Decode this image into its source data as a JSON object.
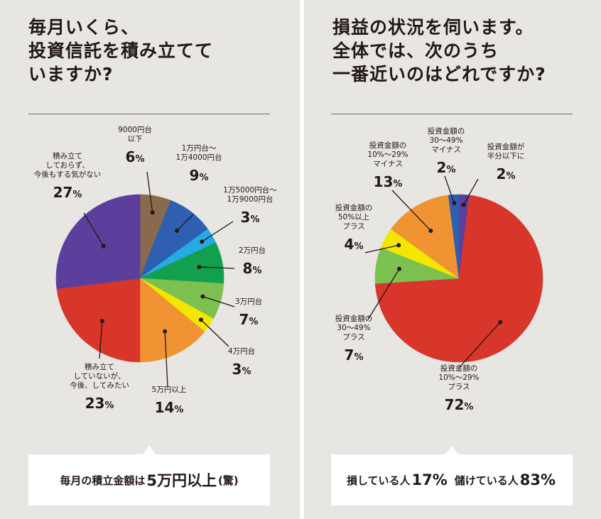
{
  "left": {
    "question": [
      "毎月いくら、",
      "投資信託を積み立てて",
      "いますか?"
    ],
    "callout": {
      "prefix": "毎月の積立金額は",
      "emphasis": "5万円以上",
      "suffix": "(驚)"
    }
  },
  "right": {
    "question": [
      "損益の状況を伺います。",
      "全体では、次のうち",
      "一番近いのはどれですか?"
    ],
    "callout": {
      "loss_label": "損している人",
      "loss_value": "17%",
      "gain_label": "儲けている人",
      "gain_value": "83%"
    }
  },
  "chart_data": [
    {
      "type": "pie",
      "title": "毎月いくら、投資信託を積み立てていますか?",
      "unit": "%",
      "slices": [
        {
          "label": [
            "9000円台",
            "以下"
          ],
          "value": 6,
          "color": "#8a6a4c"
        },
        {
          "label": [
            "1万円台〜",
            "1万4000円台"
          ],
          "value": 9,
          "color": "#2e5fb0"
        },
        {
          "label": [
            "1万5000円台〜",
            "1万9000円台"
          ],
          "value": 3,
          "color": "#27a9e1"
        },
        {
          "label": [
            "2万円台"
          ],
          "value": 8,
          "color": "#12a04f"
        },
        {
          "label": [
            "3万円台"
          ],
          "value": 7,
          "color": "#7cc14f"
        },
        {
          "label": [
            "4万円台"
          ],
          "value": 3,
          "color": "#f3e600"
        },
        {
          "label": [
            "5万円以上"
          ],
          "value": 14,
          "color": "#f09433"
        },
        {
          "label": [
            "積み立て",
            "していないが、",
            "今後、してみたい"
          ],
          "value": 23,
          "color": "#d8362b"
        },
        {
          "label": [
            "積み立て",
            "しておらず、",
            "今後もする気がない"
          ],
          "value": 27,
          "color": "#5c3f9c"
        }
      ]
    },
    {
      "type": "pie",
      "title": "損益の状況を伺います。全体では、次のうち一番近いのはどれですか?",
      "unit": "%",
      "slices": [
        {
          "label": [
            "投資金額が",
            "半分以下に"
          ],
          "value": 2,
          "color": "#5a3f9d"
        },
        {
          "label": [
            "投資金額の",
            "10%〜29%",
            "プラス"
          ],
          "value": 72,
          "color": "#d8362b"
        },
        {
          "label": [
            "投資金額の",
            "30〜49%",
            "プラス"
          ],
          "value": 7,
          "color": "#7cc14f"
        },
        {
          "label": [
            "投資金額の",
            "50%以上",
            "プラス"
          ],
          "value": 4,
          "color": "#f3e600"
        },
        {
          "label": [
            "投資金額の",
            "10%〜29%",
            "マイナス"
          ],
          "value": 13,
          "color": "#f09433"
        },
        {
          "label": [
            "投資金額の",
            "30〜49%",
            "マイナス"
          ],
          "value": 2,
          "color": "#2e5fb0"
        }
      ]
    }
  ]
}
